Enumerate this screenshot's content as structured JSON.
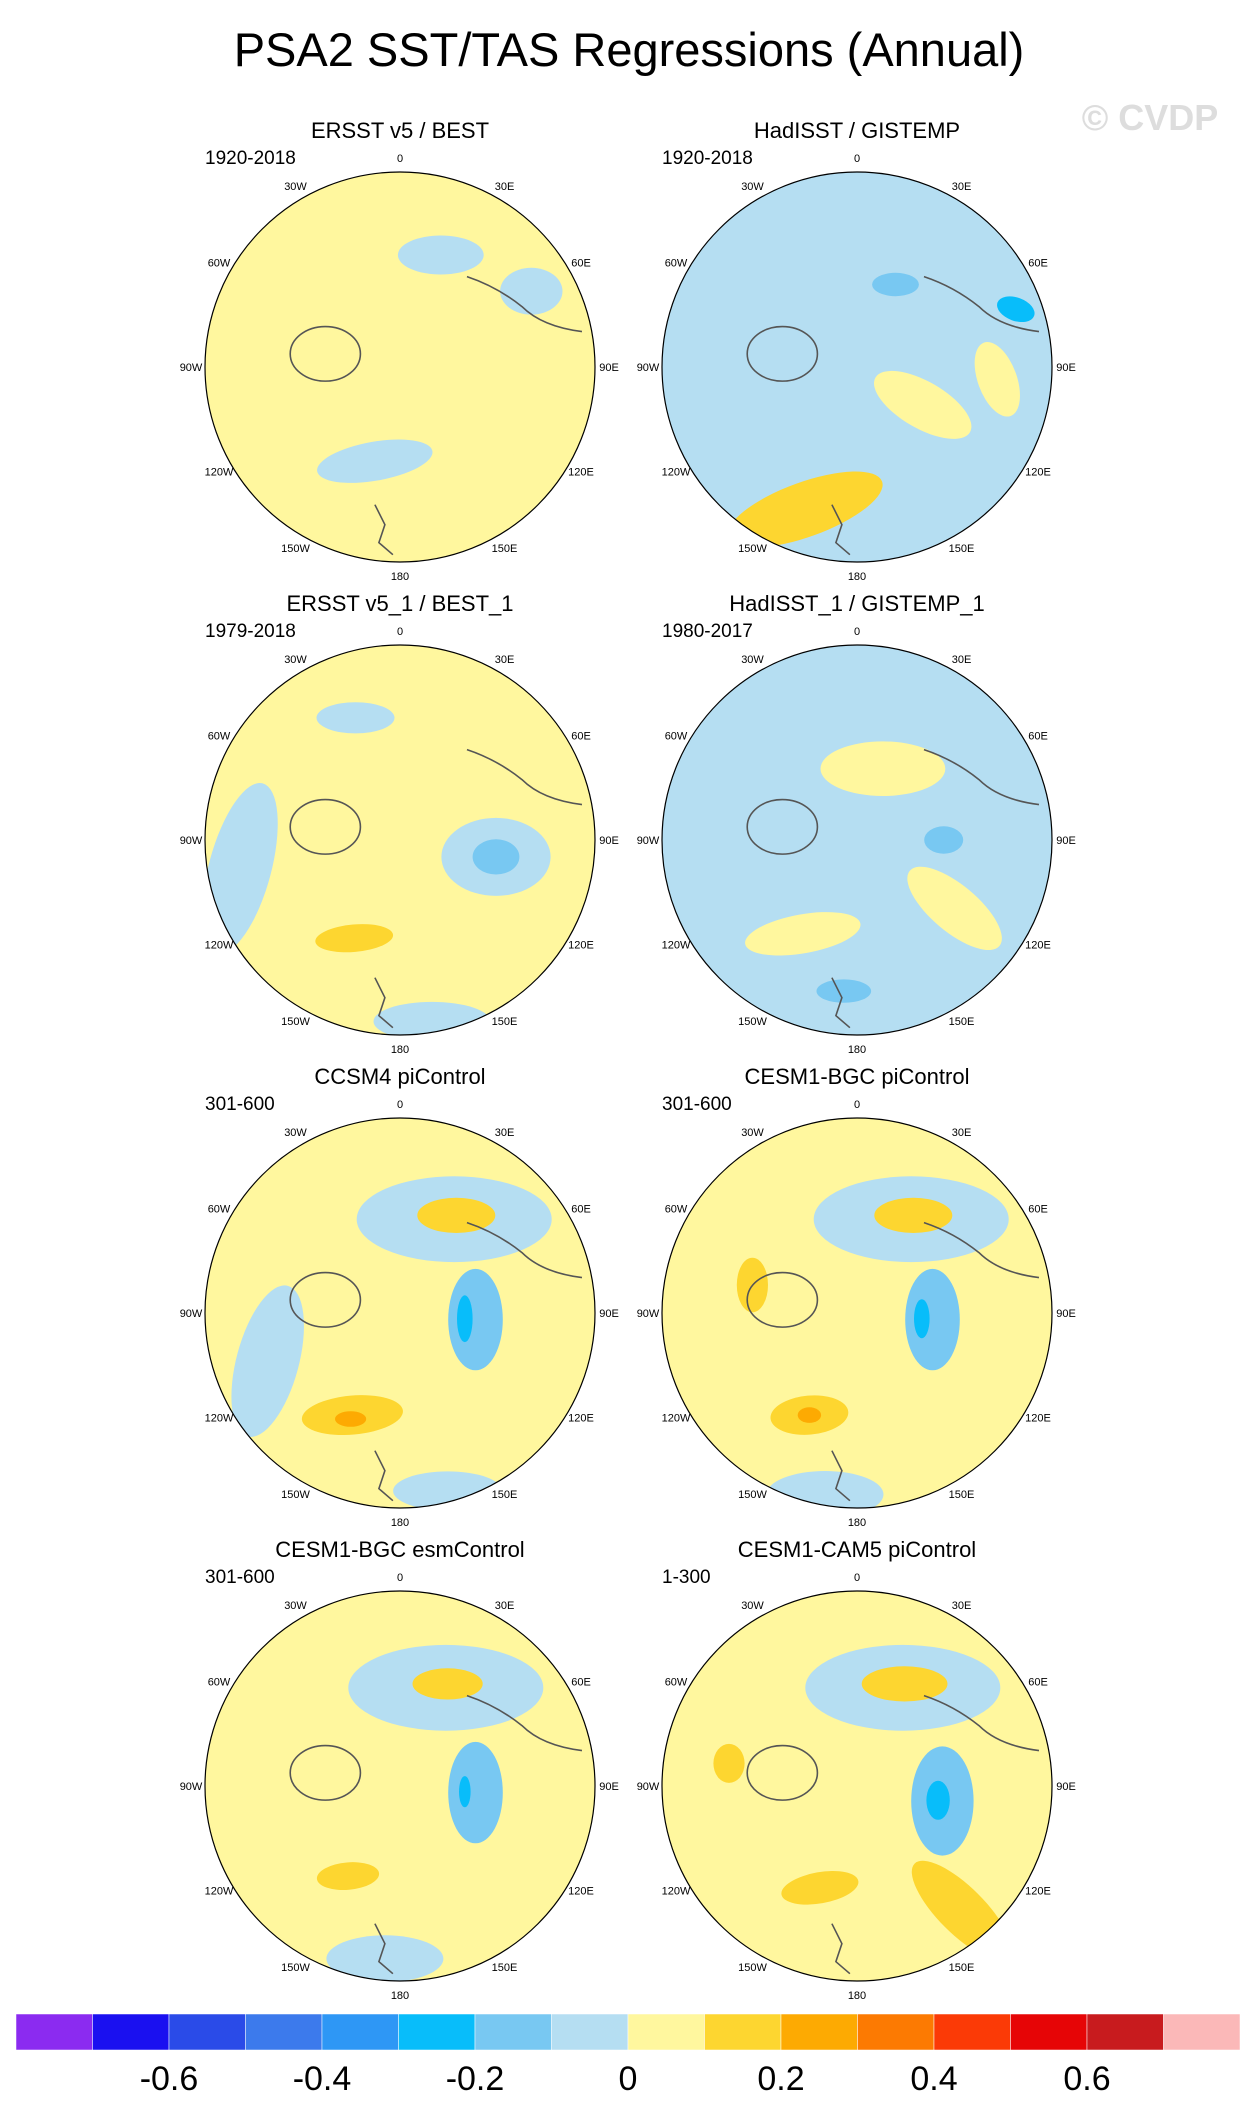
{
  "title": "PSA2 SST/TAS Regressions (Annual)",
  "watermark": "© CVDP",
  "chart_data": {
    "type": "heatmap",
    "projection": "south-polar-stereographic",
    "longitude_labels": [
      "0",
      "30E",
      "60E",
      "90E",
      "120E",
      "150E",
      "180",
      "150W",
      "120W",
      "90W",
      "60W",
      "30W"
    ],
    "colorbar": {
      "colors": [
        "#8B2BF0",
        "#1A10F0",
        "#2A4BE8",
        "#3C7AEC",
        "#2E97F5",
        "#08BDFA",
        "#78C8F2",
        "#B5DEF2",
        "#FFF79E",
        "#FDD630",
        "#FDAA02",
        "#FC7A02",
        "#FB3A06",
        "#E60506",
        "#C81B1E",
        "#FBB8B8"
      ],
      "tick_labels": [
        "-0.6",
        "-0.4",
        "-0.2",
        "0",
        "0.2",
        "0.4",
        "0.6"
      ],
      "tick_values": [
        -0.6,
        -0.4,
        -0.2,
        0,
        0.2,
        0.4,
        0.6
      ],
      "range": [
        -0.8,
        0.8
      ]
    },
    "panels": [
      {
        "name": "ERSST v5 / BEST",
        "period": "1920-2018",
        "base": "yellow",
        "blobs": [
          {
            "lat": -25,
            "lon": -115,
            "rx": 0.34,
            "ry": 0.16,
            "level": 0.02,
            "rot": 15
          },
          {
            "lat": -15,
            "lon": 150,
            "rx": 0.26,
            "ry": 0.18,
            "level": 0.02,
            "rot": 0
          },
          {
            "lat": -45,
            "lon": 165,
            "rx": 0.3,
            "ry": 0.1,
            "level": -0.05,
            "rot": -10
          },
          {
            "lat": -35,
            "lon": -20,
            "rx": 0.22,
            "ry": 0.1,
            "level": -0.05,
            "rot": 0
          },
          {
            "lat": -20,
            "lon": -60,
            "rx": 0.16,
            "ry": 0.12,
            "level": -0.05,
            "rot": 0
          }
        ]
      },
      {
        "name": "HadISST / GISTEMP",
        "period": "1920-2018",
        "base": "blue",
        "blobs": [
          {
            "lat": -20,
            "lon": 160,
            "rx": 0.42,
            "ry": 0.14,
            "level": 0.15,
            "rot": -20
          },
          {
            "lat": -55,
            "lon": -120,
            "rx": 0.28,
            "ry": 0.12,
            "level": 0.05,
            "rot": 30
          },
          {
            "lat": -25,
            "lon": -95,
            "rx": 0.2,
            "ry": 0.1,
            "level": 0.05,
            "rot": 70
          },
          {
            "lat": -12,
            "lon": -70,
            "rx": 0.1,
            "ry": 0.06,
            "level": -0.3,
            "rot": 20
          },
          {
            "lat": -48,
            "lon": -25,
            "rx": 0.12,
            "ry": 0.06,
            "level": -0.15,
            "rot": 0
          }
        ]
      },
      {
        "name": "ERSST v5_1 / BEST_1",
        "period": "1979-2018",
        "base": "yellow",
        "blobs": [
          {
            "lat": -45,
            "lon": -100,
            "rx": 0.28,
            "ry": 0.2,
            "level": -0.05,
            "rot": 0
          },
          {
            "lat": -45,
            "lon": -100,
            "rx": 0.12,
            "ry": 0.09,
            "level": -0.15,
            "rot": 0
          },
          {
            "lat": -15,
            "lon": 100,
            "rx": 0.16,
            "ry": 0.45,
            "level": -0.05,
            "rot": 15
          },
          {
            "lat": -40,
            "lon": 155,
            "rx": 0.2,
            "ry": 0.07,
            "level": 0.15,
            "rot": -5
          },
          {
            "lat": -5,
            "lon": -170,
            "rx": 0.3,
            "ry": 0.1,
            "level": -0.05,
            "rot": 0
          },
          {
            "lat": -30,
            "lon": 20,
            "rx": 0.2,
            "ry": 0.08,
            "level": -0.05,
            "rot": 0
          }
        ]
      },
      {
        "name": "HadISST_1 / GISTEMP_1",
        "period": "1980-2017",
        "base": "blue",
        "blobs": [
          {
            "lat": -55,
            "lon": -20,
            "rx": 0.32,
            "ry": 0.14,
            "level": 0.05,
            "rot": 0
          },
          {
            "lat": -35,
            "lon": -125,
            "rx": 0.3,
            "ry": 0.12,
            "level": 0.05,
            "rot": 40
          },
          {
            "lat": -40,
            "lon": 150,
            "rx": 0.3,
            "ry": 0.1,
            "level": 0.05,
            "rot": -10
          },
          {
            "lat": -20,
            "lon": 175,
            "rx": 0.14,
            "ry": 0.06,
            "level": -0.15,
            "rot": 0
          },
          {
            "lat": -50,
            "lon": -90,
            "rx": 0.1,
            "ry": 0.07,
            "level": -0.15,
            "rot": 0
          }
        ]
      },
      {
        "name": "CCSM4 piControl",
        "period": "301-600",
        "base": "yellow",
        "blobs": [
          {
            "lat": -40,
            "lon": -30,
            "rx": 0.5,
            "ry": 0.22,
            "level": -0.05,
            "rot": 0
          },
          {
            "lat": -38,
            "lon": -30,
            "rx": 0.2,
            "ry": 0.09,
            "level": 0.15,
            "rot": 0
          },
          {
            "lat": -38,
            "lon": 155,
            "rx": 0.26,
            "ry": 0.1,
            "level": 0.15,
            "rot": -5
          },
          {
            "lat": -36,
            "lon": 155,
            "rx": 0.08,
            "ry": 0.04,
            "level": 0.25,
            "rot": 0
          },
          {
            "lat": -55,
            "lon": -95,
            "rx": 0.14,
            "ry": 0.26,
            "level": -0.15,
            "rot": 0
          },
          {
            "lat": -60,
            "lon": -95,
            "rx": 0.04,
            "ry": 0.12,
            "level": -0.3,
            "rot": 0
          },
          {
            "lat": -25,
            "lon": 110,
            "rx": 0.16,
            "ry": 0.4,
            "level": -0.05,
            "rot": 15
          },
          {
            "lat": -5,
            "lon": -165,
            "rx": 0.28,
            "ry": 0.1,
            "level": -0.05,
            "rot": 0
          }
        ]
      },
      {
        "name": "CESM1-BGC piControl",
        "period": "301-600",
        "base": "yellow",
        "blobs": [
          {
            "lat": -40,
            "lon": -30,
            "rx": 0.5,
            "ry": 0.22,
            "level": -0.05,
            "rot": 0
          },
          {
            "lat": -38,
            "lon": -30,
            "rx": 0.2,
            "ry": 0.09,
            "level": 0.15,
            "rot": 0
          },
          {
            "lat": -38,
            "lon": 155,
            "rx": 0.2,
            "ry": 0.1,
            "level": 0.15,
            "rot": -5
          },
          {
            "lat": -38,
            "lon": 155,
            "rx": 0.06,
            "ry": 0.04,
            "level": 0.25,
            "rot": 0
          },
          {
            "lat": -55,
            "lon": -95,
            "rx": 0.14,
            "ry": 0.26,
            "level": -0.15,
            "rot": 0
          },
          {
            "lat": -60,
            "lon": -95,
            "rx": 0.04,
            "ry": 0.1,
            "level": -0.3,
            "rot": 0
          },
          {
            "lat": -40,
            "lon": 75,
            "rx": 0.08,
            "ry": 0.14,
            "level": 0.15,
            "rot": 0
          },
          {
            "lat": -5,
            "lon": 170,
            "rx": 0.3,
            "ry": 0.12,
            "level": -0.05,
            "rot": 0
          }
        ]
      },
      {
        "name": "CESM1-BGC esmControl",
        "period": "301-600",
        "base": "yellow",
        "blobs": [
          {
            "lat": -40,
            "lon": -25,
            "rx": 0.5,
            "ry": 0.22,
            "level": -0.05,
            "rot": 0
          },
          {
            "lat": -38,
            "lon": -25,
            "rx": 0.18,
            "ry": 0.08,
            "level": 0.15,
            "rot": 0
          },
          {
            "lat": -42,
            "lon": 150,
            "rx": 0.16,
            "ry": 0.07,
            "level": 0.15,
            "rot": -5
          },
          {
            "lat": -55,
            "lon": -95,
            "rx": 0.14,
            "ry": 0.26,
            "level": -0.15,
            "rot": 0
          },
          {
            "lat": -60,
            "lon": -95,
            "rx": 0.03,
            "ry": 0.08,
            "level": -0.3,
            "rot": 0
          },
          {
            "lat": -10,
            "lon": 175,
            "rx": 0.3,
            "ry": 0.12,
            "level": -0.05,
            "rot": 0
          }
        ]
      },
      {
        "name": "CESM1-CAM5 piControl",
        "period": "1-300",
        "base": "yellow",
        "blobs": [
          {
            "lat": -40,
            "lon": -25,
            "rx": 0.5,
            "ry": 0.22,
            "level": -0.05,
            "rot": 0
          },
          {
            "lat": -38,
            "lon": -25,
            "rx": 0.22,
            "ry": 0.09,
            "level": 0.15,
            "rot": 0
          },
          {
            "lat": -40,
            "lon": 160,
            "rx": 0.2,
            "ry": 0.08,
            "level": 0.15,
            "rot": -10
          },
          {
            "lat": -50,
            "lon": -100,
            "rx": 0.16,
            "ry": 0.28,
            "level": -0.15,
            "rot": 0
          },
          {
            "lat": -52,
            "lon": -100,
            "rx": 0.06,
            "ry": 0.1,
            "level": -0.3,
            "rot": 0
          },
          {
            "lat": -15,
            "lon": -140,
            "rx": 0.34,
            "ry": 0.12,
            "level": 0.15,
            "rot": 45
          },
          {
            "lat": -30,
            "lon": 80,
            "rx": 0.08,
            "ry": 0.1,
            "level": 0.15,
            "rot": 0
          }
        ]
      }
    ]
  }
}
